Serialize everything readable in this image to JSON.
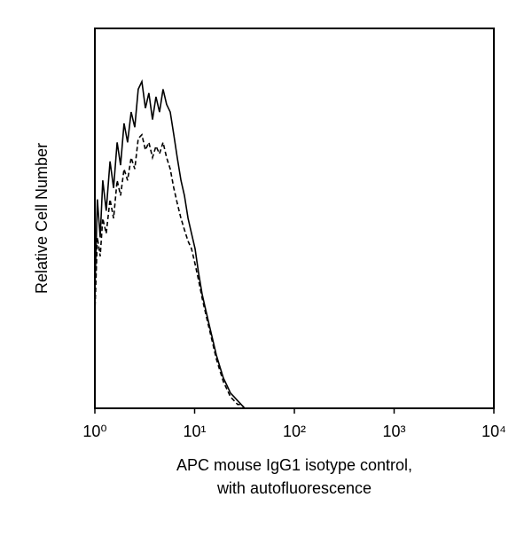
{
  "chart_data": {
    "type": "line",
    "y_label": "Relative Cell Number",
    "x_label": [
      "APC mouse IgG1 isotype control,",
      "with autofluorescence"
    ],
    "x_log": true,
    "xlim": [
      1,
      10000
    ],
    "xticks": [
      {
        "value": 1,
        "label": "10⁰"
      },
      {
        "value": 10,
        "label": "10¹"
      },
      {
        "value": 100,
        "label": "10²"
      },
      {
        "value": 1000,
        "label": "10³"
      },
      {
        "value": 10000,
        "label": "10⁴"
      }
    ],
    "ylim": [
      0,
      100
    ],
    "x": [
      1,
      1.06,
      1.13,
      1.2,
      1.3,
      1.42,
      1.54,
      1.67,
      1.81,
      1.96,
      2.13,
      2.31,
      2.51,
      2.72,
      2.96,
      3.21,
      3.48,
      3.78,
      4.1,
      4.45,
      4.83,
      5.24,
      5.7,
      6.18,
      6.7,
      7.3,
      7.9,
      8.6,
      9.3,
      10.1,
      10.9,
      11.9,
      12.9,
      14,
      15.2,
      16.5,
      17.9,
      19.4,
      21.1,
      22.9,
      24.9,
      27,
      29.3,
      31.8
    ],
    "series": [
      {
        "color": "#000000",
        "dashed": false,
        "values": [
          30,
          55,
          45,
          60,
          52,
          65,
          58,
          70,
          64,
          75,
          70,
          78,
          74,
          84,
          86,
          79,
          83,
          76,
          82,
          78,
          84,
          80,
          78,
          72,
          66,
          60,
          56,
          50,
          46,
          42,
          36,
          30,
          26,
          22,
          18,
          14,
          11,
          8,
          6,
          4,
          3,
          2,
          1,
          0
        ]
      },
      {
        "color": "#000000",
        "dashed": true,
        "values": [
          25,
          45,
          40,
          50,
          46,
          55,
          50,
          60,
          56,
          63,
          60,
          66,
          63,
          71,
          72,
          68,
          70,
          66,
          69,
          67,
          70,
          66,
          63,
          58,
          54,
          50,
          47,
          44,
          42,
          38,
          34,
          29,
          25,
          21,
          17,
          13,
          10,
          7,
          5,
          3,
          2,
          1,
          1,
          0
        ]
      }
    ]
  }
}
